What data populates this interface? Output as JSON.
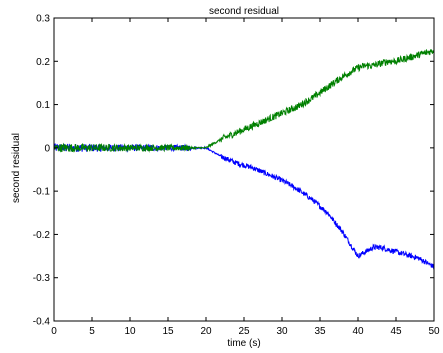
{
  "chart_data": {
    "type": "line",
    "title": "second residual",
    "xlabel": "time (s)",
    "ylabel": "second residual",
    "xlim": [
      0,
      50
    ],
    "ylim": [
      -0.4,
      0.3
    ],
    "grid": false,
    "legend": "none",
    "x_ticks": [
      "0",
      "5",
      "10",
      "15",
      "20",
      "25",
      "30",
      "35",
      "40",
      "45",
      "50"
    ],
    "y_ticks": [
      "-0.4",
      "-0.3",
      "-0.2",
      "-0.1",
      "0",
      "0.1",
      "0.2",
      "0.3"
    ],
    "series": [
      {
        "color": "#0000ff",
        "x": [
          0,
          2,
          4,
          6,
          8,
          10,
          12,
          14,
          16,
          18,
          20,
          22,
          24,
          26,
          28,
          30,
          32,
          34,
          36,
          38,
          40,
          41,
          42,
          43,
          44,
          45,
          46,
          47,
          48,
          49,
          50
        ],
        "y": [
          0.0,
          0.0,
          0.0,
          0.0,
          0.0,
          0.0,
          0.0,
          0.0,
          0.0,
          0.0,
          0.0,
          -0.02,
          -0.035,
          -0.045,
          -0.06,
          -0.075,
          -0.095,
          -0.12,
          -0.15,
          -0.195,
          -0.25,
          -0.24,
          -0.23,
          -0.23,
          -0.235,
          -0.24,
          -0.245,
          -0.25,
          -0.255,
          -0.265,
          -0.275
        ],
        "noise": 0.006
      },
      {
        "color": "#008000",
        "x": [
          0,
          2,
          4,
          6,
          8,
          10,
          12,
          14,
          16,
          18,
          20,
          22,
          24,
          26,
          28,
          30,
          32,
          34,
          36,
          38,
          40,
          41,
          42,
          43,
          44,
          45,
          46,
          47,
          48,
          49,
          50
        ],
        "y": [
          0.0,
          0.0,
          0.0,
          0.0,
          0.0,
          0.0,
          0.0,
          0.0,
          0.0,
          0.0,
          0.0,
          0.02,
          0.035,
          0.05,
          0.065,
          0.08,
          0.095,
          0.115,
          0.14,
          0.165,
          0.185,
          0.19,
          0.19,
          0.195,
          0.2,
          0.2,
          0.205,
          0.21,
          0.215,
          0.22,
          0.225
        ],
        "noise": 0.008
      }
    ]
  }
}
